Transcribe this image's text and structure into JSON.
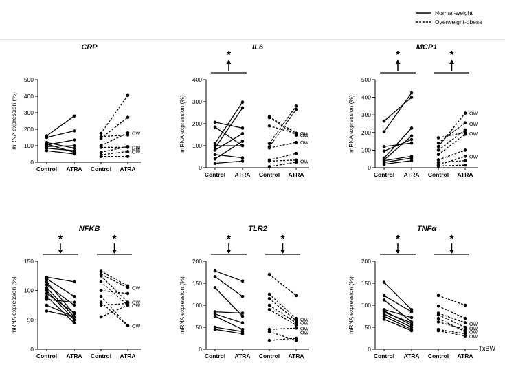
{
  "legend": {
    "normal": "Normal-weight",
    "overweight": "Overweight-obese"
  },
  "footnote": "TxBW",
  "ow_label": "OW",
  "star": "*",
  "colors": {
    "ink": "#000000",
    "background": "#ffffff"
  },
  "chart_data": [
    {
      "type": "line",
      "title": "CRP",
      "ylabel": "mRNA expression (%)",
      "ylim": [
        0,
        500
      ],
      "yticks": [
        0,
        100,
        200,
        300,
        400,
        500
      ],
      "categories": [
        "Control",
        "ATRA",
        "Control",
        "ATRA"
      ],
      "normal_weight": [
        [
          160,
          280
        ],
        [
          150,
          190
        ],
        [
          120,
          85
        ],
        [
          110,
          60
        ],
        [
          105,
          135
        ],
        [
          95,
          100
        ],
        [
          85,
          70
        ],
        [
          70,
          50
        ]
      ],
      "overweight_obese": [
        [
          175,
          405
        ],
        [
          155,
          165
        ],
        [
          145,
          272
        ],
        [
          100,
          178
        ],
        [
          90,
          90
        ],
        [
          60,
          95
        ],
        [
          45,
          65
        ],
        [
          35,
          35
        ]
      ],
      "ow_values": [
        178,
        90,
        80,
        65
      ],
      "stars": []
    },
    {
      "type": "line",
      "title": "IL6",
      "ylabel": "mRNA expression (%)",
      "ylim": [
        0,
        400
      ],
      "yticks": [
        0,
        100,
        200,
        300,
        400
      ],
      "categories": [
        "Control",
        "ATRA",
        "Control",
        "ATRA"
      ],
      "normal_weight": [
        [
          207,
          180
        ],
        [
          185,
          100
        ],
        [
          110,
          298
        ],
        [
          100,
          100
        ],
        [
          90,
          272
        ],
        [
          80,
          155
        ],
        [
          60,
          45
        ],
        [
          40,
          120
        ],
        [
          20,
          30
        ]
      ],
      "overweight_obese": [
        [
          232,
          157
        ],
        [
          228,
          148
        ],
        [
          190,
          155
        ],
        [
          110,
          280
        ],
        [
          95,
          265
        ],
        [
          90,
          115
        ],
        [
          35,
          65
        ],
        [
          30,
          35
        ],
        [
          5,
          25
        ]
      ],
      "ow_values": [
        157,
        148,
        115,
        30
      ],
      "stars": [
        {
          "group": "normal",
          "direction": "up"
        }
      ]
    },
    {
      "type": "line",
      "title": "MCP1",
      "ylabel": "mRNA expression (%)",
      "ylim": [
        0,
        500
      ],
      "yticks": [
        0,
        100,
        200,
        300,
        400,
        500
      ],
      "categories": [
        "Control",
        "ATRA",
        "Control",
        "ATRA"
      ],
      "normal_weight": [
        [
          265,
          400
        ],
        [
          205,
          425
        ],
        [
          120,
          140
        ],
        [
          95,
          160
        ],
        [
          55,
          225
        ],
        [
          45,
          180
        ],
        [
          40,
          65
        ],
        [
          30,
          55
        ],
        [
          20,
          40
        ]
      ],
      "overweight_obese": [
        [
          170,
          200
        ],
        [
          140,
          255
        ],
        [
          120,
          310
        ],
        [
          100,
          215
        ],
        [
          75,
          190
        ],
        [
          45,
          100
        ],
        [
          30,
          40
        ],
        [
          15,
          65
        ],
        [
          10,
          15
        ]
      ],
      "ow_values": [
        310,
        250,
        195,
        65
      ],
      "stars": [
        {
          "group": "normal",
          "direction": "up"
        },
        {
          "group": "overweight",
          "direction": "up"
        }
      ]
    },
    {
      "type": "line",
      "title": "NFKB",
      "ylabel": "mRNA expression (%)",
      "ylim": [
        0,
        150
      ],
      "yticks": [
        0,
        50,
        100,
        150
      ],
      "categories": [
        "Control",
        "ATRA",
        "Control",
        "ATRA"
      ],
      "normal_weight": [
        [
          123,
          115
        ],
        [
          120,
          90
        ],
        [
          115,
          60
        ],
        [
          110,
          75
        ],
        [
          105,
          55
        ],
        [
          100,
          50
        ],
        [
          95,
          62
        ],
        [
          90,
          45
        ],
        [
          85,
          80
        ],
        [
          75,
          55
        ],
        [
          65,
          55
        ]
      ],
      "overweight_obese": [
        [
          133,
          108
        ],
        [
          128,
          105
        ],
        [
          125,
          80
        ],
        [
          115,
          75
        ],
        [
          100,
          95
        ],
        [
          90,
          40
        ],
        [
          80,
          40
        ],
        [
          75,
          78
        ],
        [
          55,
          75
        ]
      ],
      "ow_values": [
        105,
        80,
        75,
        40
      ],
      "stars": [
        {
          "group": "normal",
          "direction": "down"
        },
        {
          "group": "overweight",
          "direction": "down"
        }
      ]
    },
    {
      "type": "line",
      "title": "TLR2",
      "ylabel": "mRNA expression (%)",
      "ylim": [
        0,
        200
      ],
      "yticks": [
        0,
        50,
        100,
        150,
        200
      ],
      "categories": [
        "Control",
        "ATRA",
        "Control",
        "ATRA"
      ],
      "normal_weight": [
        [
          178,
          155
        ],
        [
          165,
          120
        ],
        [
          140,
          75
        ],
        [
          85,
          82
        ],
        [
          80,
          60
        ],
        [
          75,
          45
        ],
        [
          50,
          40
        ],
        [
          45,
          35
        ]
      ],
      "overweight_obese": [
        [
          170,
          122
        ],
        [
          125,
          70
        ],
        [
          115,
          65
        ],
        [
          100,
          60
        ],
        [
          90,
          55
        ],
        [
          45,
          48
        ],
        [
          40,
          20
        ],
        [
          20,
          25
        ]
      ],
      "ow_values": [
        68,
        60,
        48,
        38
      ],
      "stars": [
        {
          "group": "normal",
          "direction": "down"
        },
        {
          "group": "overweight",
          "direction": "down"
        }
      ]
    },
    {
      "type": "line",
      "title": "TNFα",
      "ylabel": "mRNA expression (%)",
      "ylim": [
        0,
        200
      ],
      "yticks": [
        0,
        50,
        100,
        150,
        200
      ],
      "categories": [
        "Control",
        "ATRA",
        "Control",
        "ATRA"
      ],
      "normal_weight": [
        [
          152,
          90
        ],
        [
          122,
          85
        ],
        [
          112,
          62
        ],
        [
          90,
          72
        ],
        [
          87,
          55
        ],
        [
          84,
          60
        ],
        [
          80,
          50
        ],
        [
          75,
          45
        ],
        [
          68,
          42
        ]
      ],
      "overweight_obese": [
        [
          122,
          100
        ],
        [
          98,
          70
        ],
        [
          82,
          60
        ],
        [
          78,
          50
        ],
        [
          70,
          40
        ],
        [
          62,
          45
        ],
        [
          45,
          35
        ],
        [
          42,
          30
        ]
      ],
      "ow_values": [
        58,
        48,
        40,
        30
      ],
      "stars": [
        {
          "group": "normal",
          "direction": "down"
        },
        {
          "group": "overweight",
          "direction": "down"
        }
      ]
    }
  ]
}
